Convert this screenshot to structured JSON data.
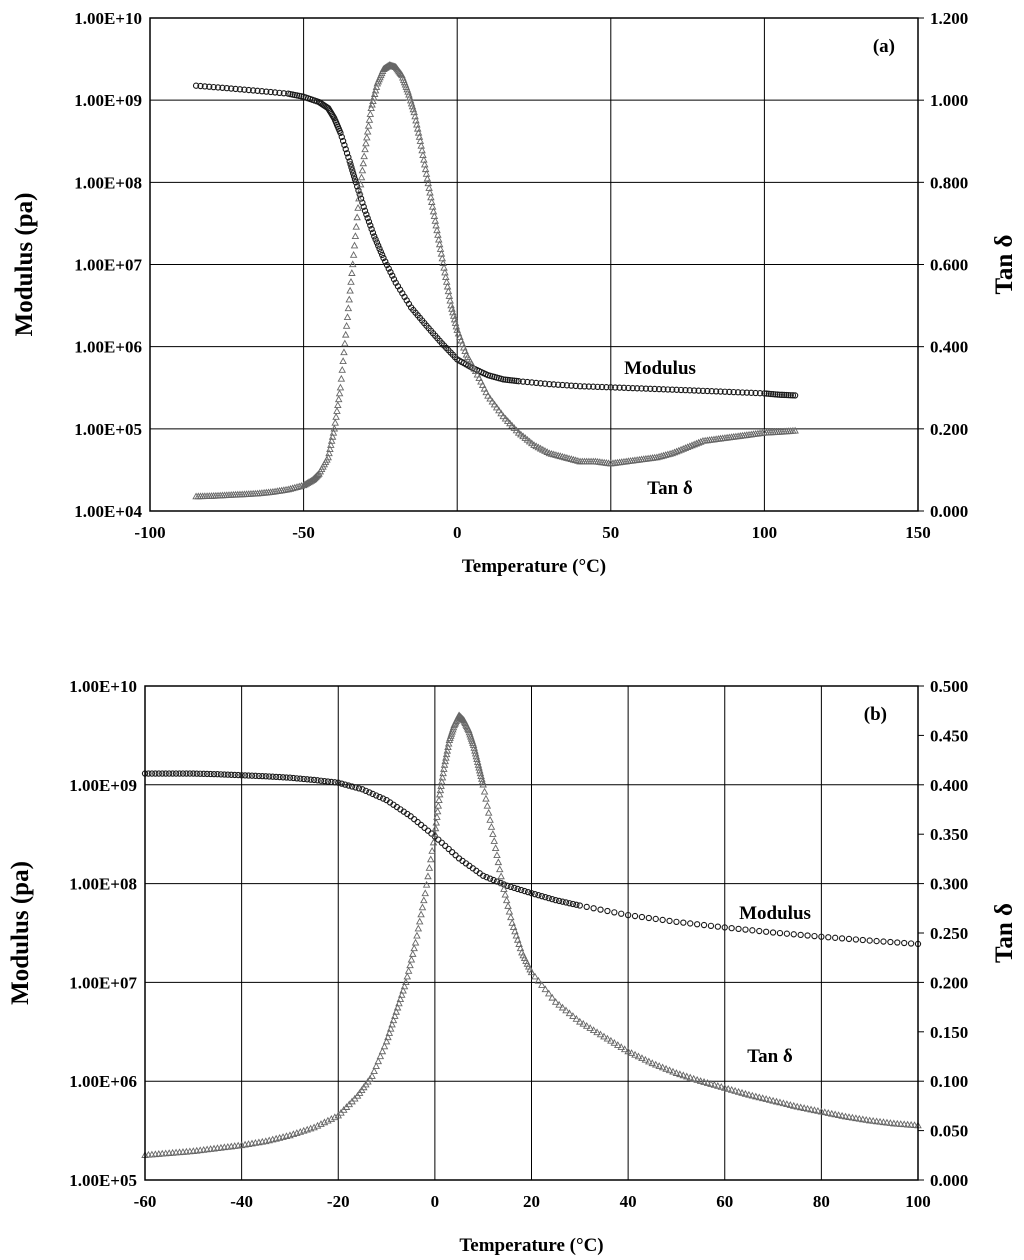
{
  "chart_data": [
    {
      "type": "scatter",
      "panel_label": "(a)",
      "xlabel": "Temperature (°C)",
      "ylabel_left": "Modulus (pa)",
      "ylabel_right": "Tan δ",
      "xlim": [
        -100,
        150
      ],
      "x_ticks": [
        "-100",
        "-50",
        "0",
        "50",
        "100",
        "150"
      ],
      "x_tick_values": [
        -100,
        -50,
        0,
        50,
        100,
        150
      ],
      "y_left_log": true,
      "y_left_lim": [
        10000,
        10000000000
      ],
      "y_left_ticks": [
        "1.00E+04",
        "1.00E+05",
        "1.00E+06",
        "1.00E+07",
        "1.00E+08",
        "1.00E+09",
        "1.00E+10"
      ],
      "y_left_tick_values": [
        10000,
        100000,
        1000000,
        10000000,
        100000000,
        1000000000,
        10000000000
      ],
      "y_right_lim": [
        0,
        1.2
      ],
      "y_right_ticks": [
        "0.000",
        "0.200",
        "0.400",
        "0.600",
        "0.800",
        "1.000",
        "1.200"
      ],
      "y_right_tick_values": [
        0,
        0.2,
        0.4,
        0.6,
        0.8,
        1.0,
        1.2
      ],
      "grid": true,
      "series": [
        {
          "name": "Modulus",
          "axis": "left",
          "marker": "circle",
          "x": [
            -85,
            -75,
            -65,
            -55,
            -50,
            -45,
            -42,
            -40,
            -38,
            -35,
            -33,
            -30,
            -27,
            -24,
            -20,
            -15,
            -10,
            -5,
            0,
            5,
            10,
            15,
            20,
            30,
            40,
            50,
            60,
            70,
            80,
            90,
            100,
            105,
            110
          ],
          "y": [
            1500000000,
            1400000000,
            1300000000,
            1200000000,
            1100000000,
            950000000,
            800000000,
            600000000,
            400000000,
            180000000,
            100000000,
            45000000,
            22000000,
            12000000,
            6000000,
            3000000,
            1800000,
            1100000,
            700000,
            550000,
            450000,
            400000,
            380000,
            350000,
            330000,
            320000,
            310000,
            300000,
            290000,
            280000,
            270000,
            260000,
            255000
          ]
        },
        {
          "name": "Tan δ",
          "axis": "right",
          "marker": "triangle",
          "x": [
            -85,
            -80,
            -75,
            -70,
            -65,
            -60,
            -55,
            -50,
            -47,
            -45,
            -42,
            -40,
            -38,
            -36,
            -34,
            -32,
            -30,
            -28,
            -26,
            -24,
            -22,
            -20,
            -18,
            -16,
            -14,
            -12,
            -10,
            -8,
            -6,
            -4,
            -2,
            0,
            3,
            6,
            10,
            15,
            20,
            25,
            30,
            35,
            40,
            45,
            50,
            55,
            60,
            65,
            70,
            75,
            80,
            85,
            90,
            95,
            100,
            105,
            110
          ],
          "y": [
            0.035,
            0.036,
            0.038,
            0.04,
            0.042,
            0.046,
            0.052,
            0.062,
            0.075,
            0.09,
            0.13,
            0.2,
            0.3,
            0.45,
            0.6,
            0.76,
            0.88,
            0.98,
            1.04,
            1.075,
            1.085,
            1.08,
            1.06,
            1.02,
            0.97,
            0.9,
            0.82,
            0.74,
            0.66,
            0.58,
            0.5,
            0.44,
            0.38,
            0.34,
            0.28,
            0.23,
            0.19,
            0.16,
            0.14,
            0.13,
            0.12,
            0.12,
            0.115,
            0.12,
            0.125,
            0.13,
            0.14,
            0.155,
            0.17,
            0.175,
            0.18,
            0.185,
            0.19,
            0.192,
            0.195
          ]
        }
      ],
      "annotations": [
        {
          "text": "Modulus",
          "series": "Modulus",
          "x": 78,
          "y": 450000
        },
        {
          "text": "Tan δ",
          "series": "Tan δ",
          "x": 78,
          "y": 20000
        }
      ]
    },
    {
      "type": "scatter",
      "panel_label": "(b)",
      "xlabel": "Temperature (°C)",
      "ylabel_left": "Modulus (pa)",
      "ylabel_right": "Tan δ",
      "xlim": [
        -60,
        100
      ],
      "x_ticks": [
        "-60",
        "-40",
        "-20",
        "0",
        "20",
        "40",
        "60",
        "80",
        "100"
      ],
      "x_tick_values": [
        -60,
        -40,
        -20,
        0,
        20,
        40,
        60,
        80,
        100
      ],
      "y_left_log": true,
      "y_left_lim": [
        100000,
        10000000000
      ],
      "y_left_ticks": [
        "1.00E+05",
        "1.00E+06",
        "1.00E+07",
        "1.00E+08",
        "1.00E+09",
        "1.00E+10"
      ],
      "y_left_tick_values": [
        100000,
        1000000,
        10000000,
        100000000,
        1000000000,
        10000000000
      ],
      "y_right_lim": [
        0,
        0.5
      ],
      "y_right_ticks": [
        "0.000",
        "0.050",
        "0.100",
        "0.150",
        "0.200",
        "0.250",
        "0.300",
        "0.350",
        "0.400",
        "0.450",
        "0.500"
      ],
      "y_right_tick_values": [
        0,
        0.05,
        0.1,
        0.15,
        0.2,
        0.25,
        0.3,
        0.35,
        0.4,
        0.45,
        0.5
      ],
      "grid": true,
      "series": [
        {
          "name": "Modulus",
          "axis": "left",
          "marker": "circle",
          "x": [
            -60,
            -55,
            -50,
            -45,
            -40,
            -35,
            -30,
            -25,
            -20,
            -15,
            -10,
            -5,
            0,
            5,
            10,
            15,
            20,
            25,
            30,
            40,
            50,
            60,
            70,
            80,
            90,
            100
          ],
          "y": [
            1300000000,
            1300000000,
            1300000000,
            1280000000,
            1250000000,
            1220000000,
            1180000000,
            1120000000,
            1050000000,
            900000000,
            700000000,
            480000000,
            300000000,
            180000000,
            120000000,
            95000000,
            80000000,
            68000000,
            60000000,
            48000000,
            41000000,
            36000000,
            32000000,
            29000000,
            26500000,
            24500000
          ]
        },
        {
          "name": "Tan δ",
          "axis": "right",
          "marker": "triangle",
          "x": [
            -60,
            -55,
            -50,
            -45,
            -40,
            -35,
            -30,
            -25,
            -20,
            -16,
            -13,
            -10,
            -8,
            -6,
            -4,
            -2,
            0,
            1,
            2,
            3,
            4,
            5,
            6,
            7,
            8,
            9,
            10,
            12,
            14,
            16,
            18,
            20,
            25,
            30,
            35,
            40,
            45,
            50,
            55,
            60,
            65,
            70,
            75,
            80,
            85,
            90,
            95,
            100
          ],
          "y": [
            0.025,
            0.027,
            0.029,
            0.032,
            0.035,
            0.039,
            0.045,
            0.053,
            0.065,
            0.085,
            0.105,
            0.14,
            0.17,
            0.2,
            0.24,
            0.29,
            0.35,
            0.39,
            0.42,
            0.445,
            0.46,
            0.47,
            0.465,
            0.455,
            0.44,
            0.42,
            0.4,
            0.35,
            0.3,
            0.26,
            0.23,
            0.21,
            0.18,
            0.16,
            0.145,
            0.13,
            0.118,
            0.108,
            0.1,
            0.093,
            0.086,
            0.08,
            0.074,
            0.069,
            0.064,
            0.06,
            0.057,
            0.055
          ]
        }
      ],
      "annotations": [
        {
          "text": "Modulus",
          "series": "Modulus",
          "x": 76,
          "y": 60000000
        },
        {
          "text": "Tan δ",
          "series": "Tan δ",
          "x": 68,
          "y": 0.12
        }
      ]
    }
  ]
}
